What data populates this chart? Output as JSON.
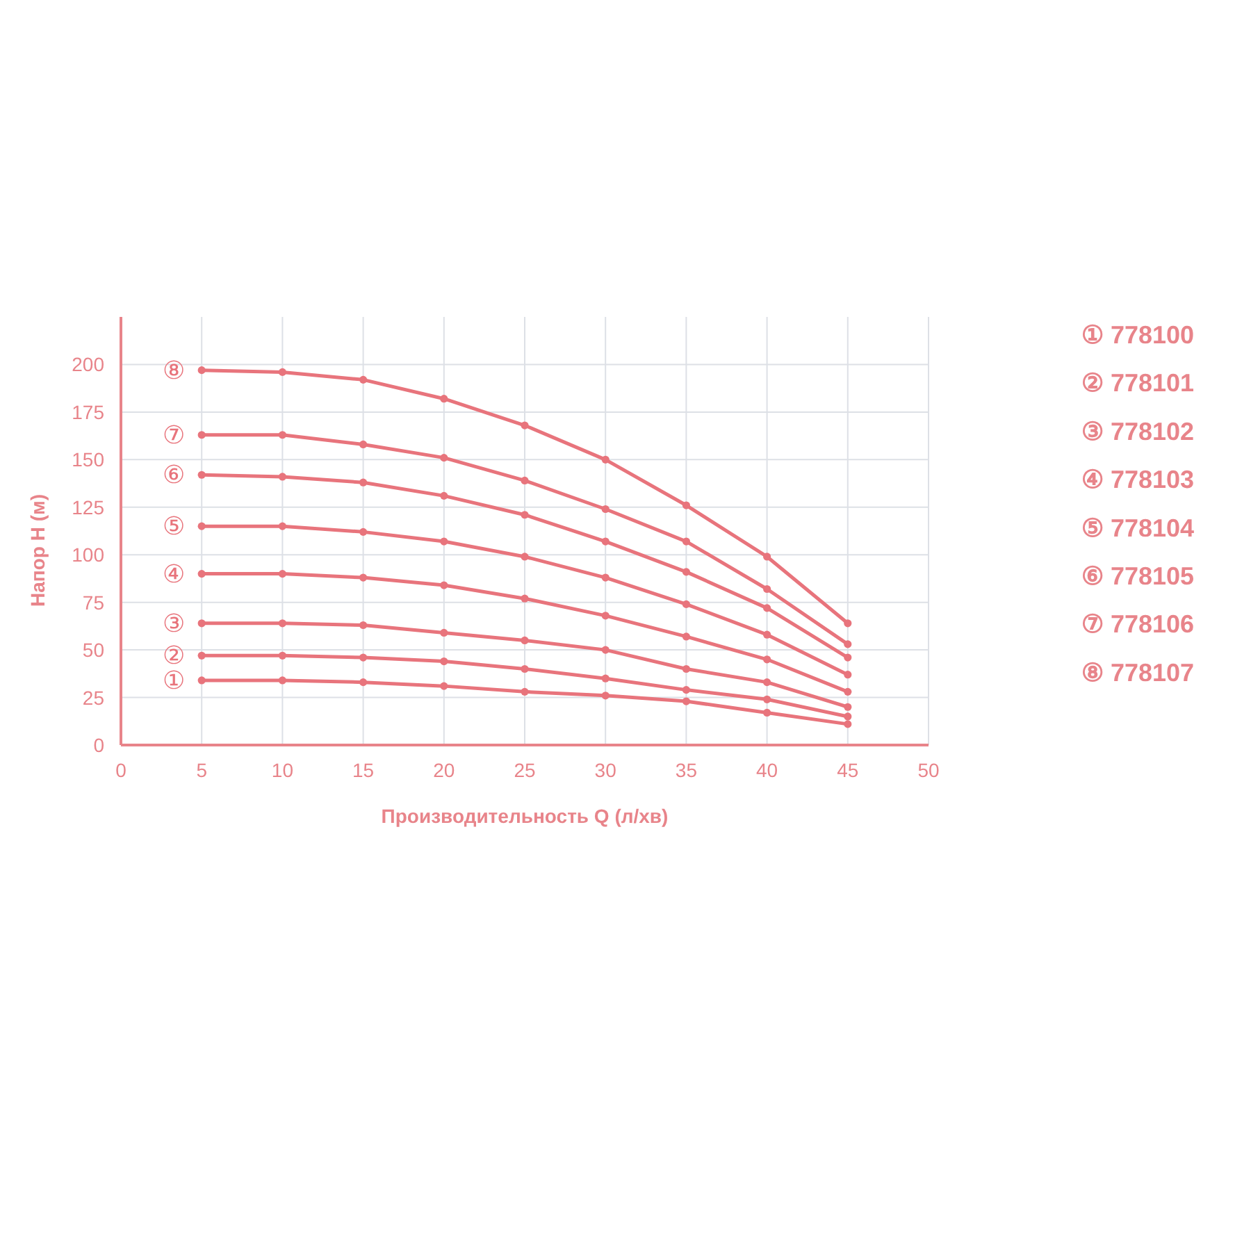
{
  "chart_data": {
    "type": "line",
    "xlabel": "Производительность Q (л/хв)",
    "ylabel": "Напор H (м)",
    "x": [
      5,
      10,
      15,
      20,
      25,
      30,
      35,
      40,
      45
    ],
    "xlim": [
      0,
      50
    ],
    "xticks": [
      0,
      5,
      10,
      15,
      20,
      25,
      30,
      35,
      40,
      45,
      50
    ],
    "ylim": [
      0,
      225
    ],
    "yticks": [
      0,
      25,
      50,
      75,
      100,
      125,
      150,
      175,
      200
    ],
    "grid": true,
    "marker": "circle",
    "line_style": "solid",
    "series": [
      {
        "name": "①",
        "color": "#e8747c",
        "values": [
          34,
          34,
          33,
          31,
          28,
          26,
          23,
          17,
          11
        ]
      },
      {
        "name": "②",
        "color": "#e8747c",
        "values": [
          47,
          47,
          46,
          44,
          40,
          35,
          29,
          24,
          15
        ]
      },
      {
        "name": "③",
        "color": "#e8747c",
        "values": [
          64,
          64,
          63,
          59,
          55,
          50,
          40,
          33,
          20
        ]
      },
      {
        "name": "④",
        "color": "#e8747c",
        "values": [
          90,
          90,
          88,
          84,
          77,
          68,
          57,
          45,
          28
        ]
      },
      {
        "name": "⑤",
        "color": "#e8747c",
        "values": [
          115,
          115,
          112,
          107,
          99,
          88,
          74,
          58,
          37
        ]
      },
      {
        "name": "⑥",
        "color": "#e8747c",
        "values": [
          142,
          141,
          138,
          131,
          121,
          107,
          91,
          72,
          46
        ]
      },
      {
        "name": "⑦",
        "color": "#e8747c",
        "values": [
          163,
          163,
          158,
          151,
          139,
          124,
          107,
          82,
          53
        ]
      },
      {
        "name": "⑧",
        "color": "#e8747c",
        "values": [
          197,
          196,
          192,
          182,
          168,
          150,
          126,
          99,
          64
        ]
      }
    ],
    "annotations": [
      "① 778100",
      "② 778101",
      "③ 778102",
      "④ 778103",
      "⑤ 778104",
      "⑥ 778105",
      "⑦ 778106",
      "⑧ 778107"
    ]
  }
}
